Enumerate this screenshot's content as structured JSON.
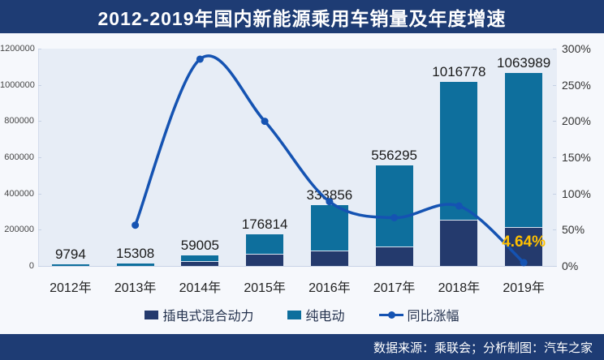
{
  "header": {
    "title": "2012-2019年国内新能源乘用车销量及年度增速"
  },
  "footer": {
    "source_text": "数据来源：乘联会；分析制图：汽车之家"
  },
  "colors": {
    "band_navy": "#1e3c74",
    "bar_phev_navy": "#243a6d",
    "bar_bev_teal": "#0e6f9d",
    "line_blue": "#1553b2",
    "growth_label_gold": "#ffc000",
    "plot_bg": "#e7edf6"
  },
  "legend": {
    "phev_label": "插电式混合动力",
    "bev_label": "纯电动",
    "growth_label": "同比涨幅"
  },
  "chart_data": {
    "type": "bar",
    "subtype": "stacked-bars-with-line",
    "title": "2012-2019年国内新能源乘用车销量及年度增速",
    "categories": [
      "2012年",
      "2013年",
      "2014年",
      "2015年",
      "2016年",
      "2017年",
      "2018年",
      "2019年"
    ],
    "totals": [
      9794,
      15308,
      59005,
      176814,
      333856,
      556295,
      1016778,
      1063989
    ],
    "total_labels": [
      "9794",
      "15308",
      "59005",
      "176814",
      "333856",
      "556295",
      "1016778",
      "1063989"
    ],
    "series": [
      {
        "name": "插电式混合动力",
        "color": "#243a6d",
        "values": [
          1200,
          1300,
          22000,
          61000,
          79000,
          105000,
          252000,
          210000
        ],
        "note": "estimated from bar segment heights (not labeled on chart)"
      },
      {
        "name": "纯电动",
        "color": "#0e6f9d",
        "values": [
          8594,
          14008,
          37005,
          115814,
          254856,
          451295,
          764778,
          853989
        ],
        "note": "estimated remainder so stacks sum to labeled totals"
      }
    ],
    "line_series": {
      "name": "同比涨幅",
      "color": "#1553b2",
      "values_pct": [
        null,
        56.3,
        285.5,
        199.7,
        88.8,
        66.6,
        82.8,
        4.64
      ],
      "last_point_label": "4.64%"
    },
    "left_axis": {
      "ticks": [
        "0",
        "200000",
        "400000",
        "600000",
        "800000",
        "1000000",
        "1200000"
      ],
      "min": 0,
      "max": 1200000
    },
    "right_axis": {
      "ticks": [
        "0%",
        "50%",
        "100%",
        "150%",
        "200%",
        "250%",
        "300%"
      ],
      "min_pct": 0,
      "max_pct": 300
    },
    "grid": "off",
    "legend_position": "bottom"
  }
}
